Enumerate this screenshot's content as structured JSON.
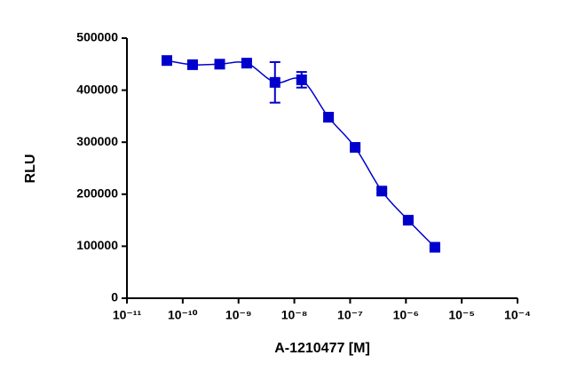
{
  "chart_data": {
    "type": "scatter",
    "xlabel": "A-1210477 [M]",
    "ylabel": "RLU",
    "xscale": "log",
    "color": "#0000cc",
    "connect": true,
    "x": [
      5.2e-11,
      1.5e-10,
      4.6e-10,
      1.4e-09,
      4.5e-09,
      1.35e-08,
      4.1e-08,
      1.23e-07,
      3.7e-07,
      1.1e-06,
      3.3e-06
    ],
    "values": [
      457000,
      449000,
      450000,
      452000,
      415000,
      420000,
      348000,
      290000,
      206000,
      150000,
      98000
    ],
    "errors": [
      5000,
      3000,
      3000,
      4000,
      39000,
      15000,
      8000,
      4000,
      4000,
      3000,
      3000
    ],
    "xlim": [
      1e-11,
      0.0001
    ],
    "xticks": [
      {
        "value": 1e-11,
        "label": "10⁻¹¹"
      },
      {
        "value": 1e-10,
        "label": "10⁻¹⁰"
      },
      {
        "value": 1e-09,
        "label": "10⁻⁹"
      },
      {
        "value": 1e-08,
        "label": "10⁻⁸"
      },
      {
        "value": 1e-07,
        "label": "10⁻⁷"
      },
      {
        "value": 1e-06,
        "label": "10⁻⁶"
      },
      {
        "value": 1e-05,
        "label": "10⁻⁵"
      },
      {
        "value": 0.0001,
        "label": "10⁻⁴"
      }
    ],
    "ylim": [
      0,
      500000
    ],
    "yticks": [
      0,
      100000,
      200000,
      300000,
      400000,
      500000
    ]
  }
}
